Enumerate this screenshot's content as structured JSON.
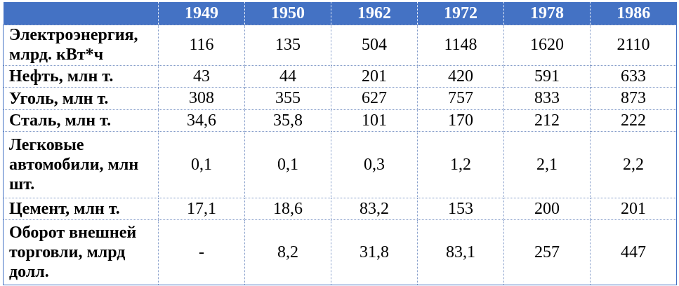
{
  "header": {
    "corner": "",
    "years": [
      "1949",
      "1950",
      "1962",
      "1972",
      "1978",
      "1986"
    ]
  },
  "rows": [
    {
      "label": "Электроэнергия, млрд. кВт*ч",
      "values": [
        "116",
        "135",
        "504",
        "1148",
        "1620",
        "2110"
      ]
    },
    {
      "label": "Нефть, млн т.",
      "values": [
        "43",
        "44",
        "201",
        "420",
        "591",
        "633"
      ]
    },
    {
      "label": "Уголь, млн т.",
      "values": [
        "308",
        "355",
        "627",
        "757",
        "833",
        "873"
      ]
    },
    {
      "label": "Сталь, млн т.",
      "values": [
        "34,6",
        "35,8",
        "101",
        "170",
        "212",
        "222"
      ]
    },
    {
      "label": "Легковые автомобили, млн шт.",
      "values": [
        "0,1",
        "0,1",
        "0,3",
        "1,2",
        "2,1",
        "2,2"
      ]
    },
    {
      "label": "Цемент, млн т.",
      "values": [
        "17,1",
        "18,6",
        "83,2",
        "153",
        "200",
        "201"
      ]
    },
    {
      "label": "Оборот внешней торговли, млрд долл.",
      "values": [
        "-",
        "8,2",
        "31,8",
        "83,1",
        "257",
        "447"
      ]
    }
  ]
}
